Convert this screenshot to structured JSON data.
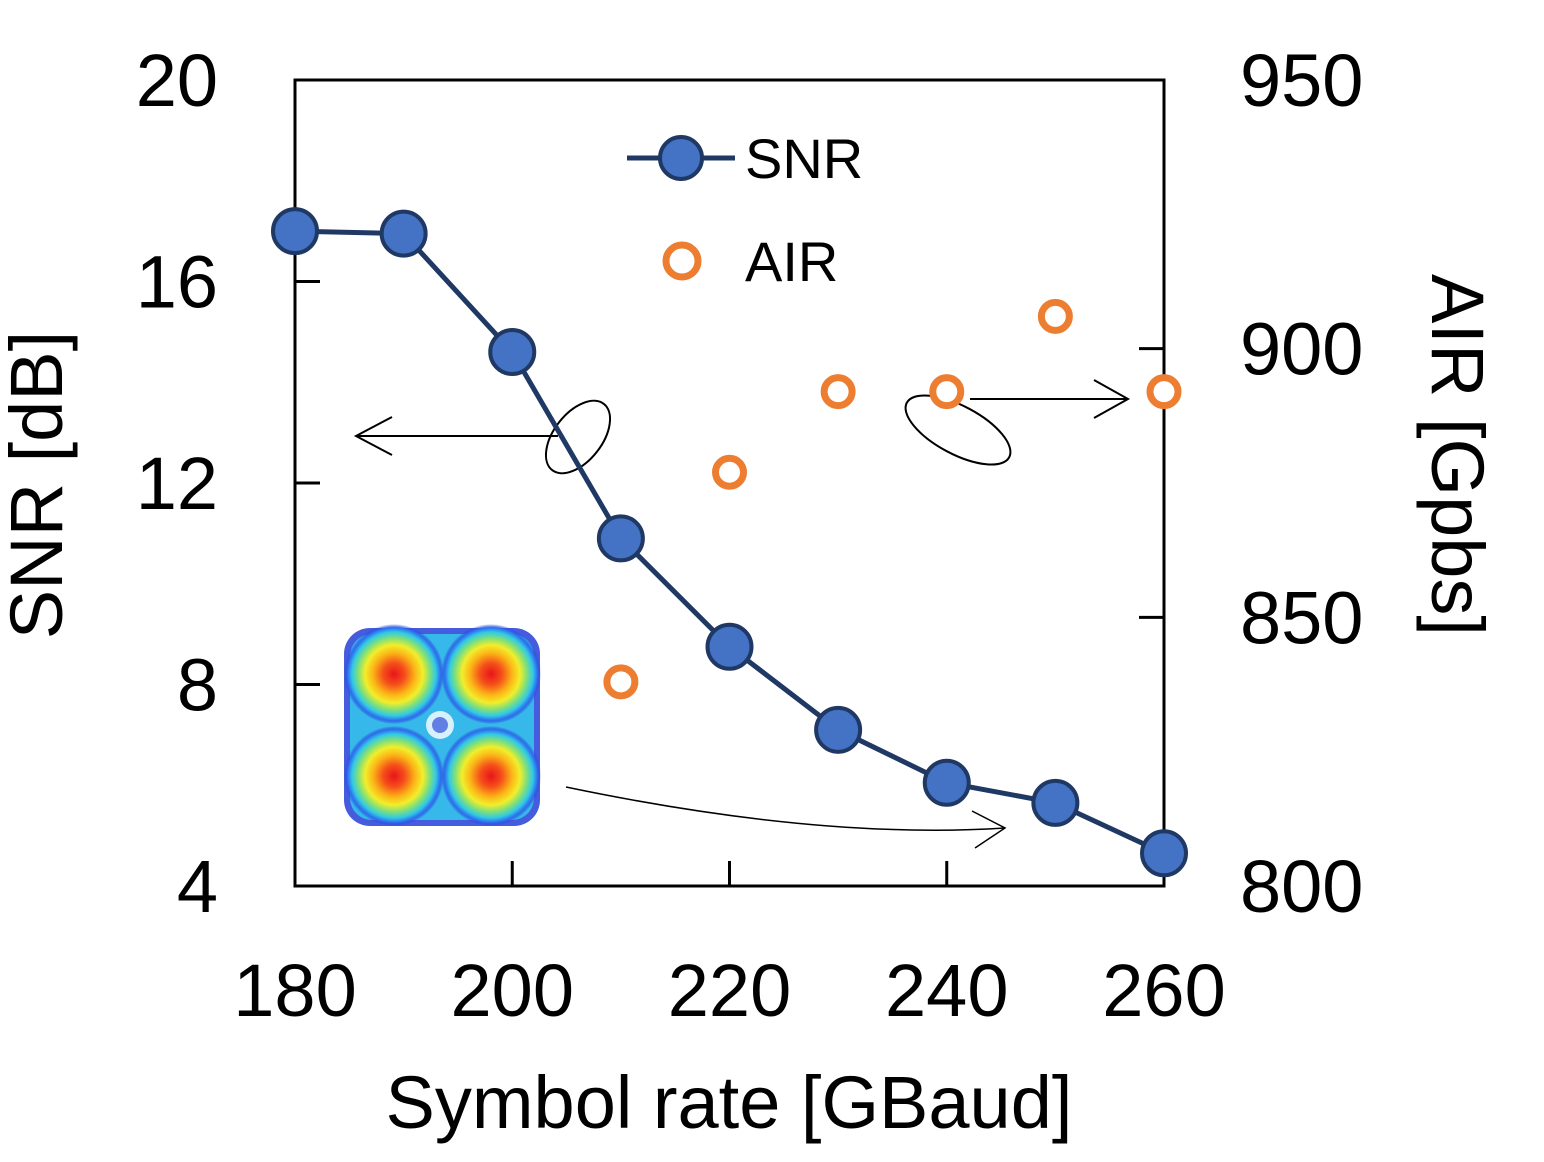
{
  "chart_data": {
    "type": "line",
    "x": [
      180,
      190,
      200,
      210,
      220,
      230,
      240,
      250,
      260
    ],
    "series": [
      {
        "name": "SNR",
        "axis": "left",
        "style": "line-with-filled-markers",
        "color": "#4472C4",
        "line_color": "#1F3864",
        "values": [
          17.0,
          16.95,
          14.6,
          10.9,
          8.75,
          7.1,
          6.05,
          5.65,
          4.65
        ]
      },
      {
        "name": "AIR",
        "axis": "right",
        "style": "hollow-markers",
        "color": "#ED7D31",
        "values": [
          null,
          null,
          null,
          838,
          877,
          892,
          892,
          906,
          892
        ]
      }
    ],
    "xlabel": "Symbol rate [GBaud]",
    "ylabel_left": "SNR [dB]",
    "ylabel_right": "AIR [Gpbs]",
    "xlim": [
      180,
      260
    ],
    "xticks": [
      "180",
      "200",
      "220",
      "240",
      "260"
    ],
    "ylim_left": [
      4,
      20
    ],
    "yticks_left": [
      "4",
      "8",
      "12",
      "16",
      "20"
    ],
    "ylim_right": [
      800,
      950
    ],
    "yticks_right": [
      "800",
      "850",
      "900",
      "950"
    ],
    "grid": false,
    "legend": "top-center",
    "inset": "constellation-diagram-4-point"
  }
}
